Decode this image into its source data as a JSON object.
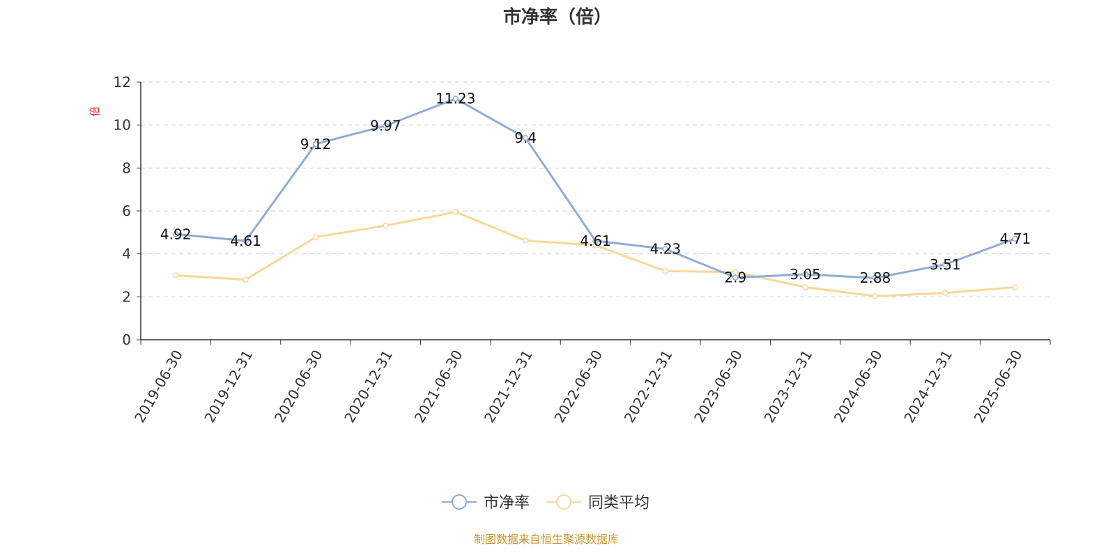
{
  "chart_data": {
    "type": "line",
    "title": "市净率（倍）",
    "y_unit": "倍",
    "categories": [
      "2019-06-30",
      "2019-12-31",
      "2020-06-30",
      "2020-12-31",
      "2021-06-30",
      "2021-12-31",
      "2022-06-30",
      "2022-12-31",
      "2023-06-30",
      "2023-12-31",
      "2024-06-30",
      "2024-12-31",
      "2025-06-30"
    ],
    "ylim": [
      0,
      12
    ],
    "yticks": [
      0,
      2,
      4,
      6,
      8,
      10,
      12
    ],
    "grid": true,
    "legend_position": "bottom",
    "series": [
      {
        "name": "市净率",
        "color": "#8eadd6",
        "values": [
          4.92,
          4.61,
          9.12,
          9.97,
          11.23,
          9.4,
          4.61,
          4.23,
          2.9,
          3.05,
          2.88,
          3.51,
          4.71
        ],
        "labels": [
          "4.92",
          "4.61",
          "9.12",
          "9.97",
          "11.23",
          "9.4",
          "4.61",
          "4.23",
          "2.9",
          "3.05",
          "2.88",
          "3.51",
          "4.71"
        ]
      },
      {
        "name": "同类平均",
        "color": "#f8d898",
        "values": [
          3.0,
          2.8,
          4.78,
          5.32,
          5.95,
          4.62,
          4.4,
          3.2,
          3.15,
          2.45,
          2.03,
          2.18,
          2.45
        ]
      }
    ],
    "source": "制图数据来自恒生聚源数据库"
  }
}
